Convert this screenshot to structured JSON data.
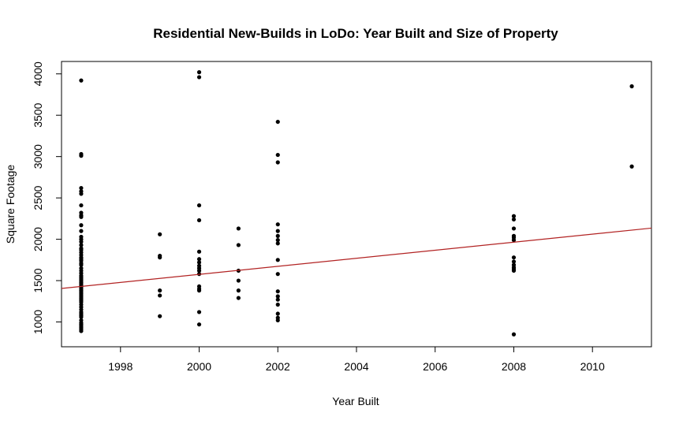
{
  "chart_data": {
    "type": "scatter",
    "title": "Residential New-Builds in LoDo: Year Built and Size of Property",
    "xlabel": "Year Built",
    "ylabel": "Square Footage",
    "xlim": [
      1996.5,
      2011.5
    ],
    "ylim": [
      700,
      4150
    ],
    "x_ticks": [
      "1998",
      "2000",
      "2002",
      "2004",
      "2006",
      "2008",
      "2010"
    ],
    "y_ticks": [
      "1000",
      "1500",
      "2000",
      "2500",
      "3000",
      "3500",
      "4000"
    ],
    "grid": false,
    "point_color": "#000000",
    "line_color": "#b22222",
    "trend_line": {
      "x": [
        1996.5,
        2011.5
      ],
      "y": [
        1405,
        2135
      ]
    },
    "points": [
      [
        1997,
        3920
      ],
      [
        1997,
        3030
      ],
      [
        1997,
        3010
      ],
      [
        1997,
        2620
      ],
      [
        1997,
        2580
      ],
      [
        1997,
        2550
      ],
      [
        1997,
        2410
      ],
      [
        1997,
        2320
      ],
      [
        1997,
        2290
      ],
      [
        1997,
        2270
      ],
      [
        1997,
        2170
      ],
      [
        1997,
        2100
      ],
      [
        1997,
        2030
      ],
      [
        1997,
        2000
      ],
      [
        1997,
        1970
      ],
      [
        1997,
        1930
      ],
      [
        1997,
        1890
      ],
      [
        1997,
        1870
      ],
      [
        1997,
        1840
      ],
      [
        1997,
        1810
      ],
      [
        1997,
        1780
      ],
      [
        1997,
        1760
      ],
      [
        1997,
        1740
      ],
      [
        1997,
        1710
      ],
      [
        1997,
        1690
      ],
      [
        1997,
        1650
      ],
      [
        1997,
        1620
      ],
      [
        1997,
        1590
      ],
      [
        1997,
        1560
      ],
      [
        1997,
        1540
      ],
      [
        1997,
        1520
      ],
      [
        1997,
        1500
      ],
      [
        1997,
        1480
      ],
      [
        1997,
        1460
      ],
      [
        1997,
        1440
      ],
      [
        1997,
        1420
      ],
      [
        1997,
        1400
      ],
      [
        1997,
        1380
      ],
      [
        1997,
        1360
      ],
      [
        1997,
        1340
      ],
      [
        1997,
        1320
      ],
      [
        1997,
        1300
      ],
      [
        1997,
        1280
      ],
      [
        1997,
        1260
      ],
      [
        1997,
        1240
      ],
      [
        1997,
        1210
      ],
      [
        1997,
        1180
      ],
      [
        1997,
        1150
      ],
      [
        1997,
        1120
      ],
      [
        1997,
        1100
      ],
      [
        1997,
        1080
      ],
      [
        1997,
        1060
      ],
      [
        1997,
        1020
      ],
      [
        1997,
        990
      ],
      [
        1997,
        970
      ],
      [
        1997,
        950
      ],
      [
        1997,
        930
      ],
      [
        1997,
        910
      ],
      [
        1997,
        890
      ],
      [
        1999,
        2060
      ],
      [
        1999,
        1800
      ],
      [
        1999,
        1780
      ],
      [
        1999,
        1380
      ],
      [
        1999,
        1320
      ],
      [
        1999,
        1070
      ],
      [
        2000,
        4020
      ],
      [
        2000,
        3960
      ],
      [
        2000,
        2410
      ],
      [
        2000,
        2230
      ],
      [
        2000,
        1850
      ],
      [
        2000,
        1760
      ],
      [
        2000,
        1720
      ],
      [
        2000,
        1680
      ],
      [
        2000,
        1650
      ],
      [
        2000,
        1620
      ],
      [
        2000,
        1580
      ],
      [
        2000,
        1430
      ],
      [
        2000,
        1400
      ],
      [
        2000,
        1380
      ],
      [
        2000,
        1120
      ],
      [
        2000,
        970
      ],
      [
        2001,
        2130
      ],
      [
        2001,
        1930
      ],
      [
        2001,
        1620
      ],
      [
        2001,
        1500
      ],
      [
        2001,
        1380
      ],
      [
        2001,
        1290
      ],
      [
        2002,
        3420
      ],
      [
        2002,
        3020
      ],
      [
        2002,
        2930
      ],
      [
        2002,
        2180
      ],
      [
        2002,
        2100
      ],
      [
        2002,
        2040
      ],
      [
        2002,
        1990
      ],
      [
        2002,
        1950
      ],
      [
        2002,
        1750
      ],
      [
        2002,
        1580
      ],
      [
        2002,
        1370
      ],
      [
        2002,
        1310
      ],
      [
        2002,
        1270
      ],
      [
        2002,
        1210
      ],
      [
        2002,
        1100
      ],
      [
        2002,
        1050
      ],
      [
        2002,
        1020
      ],
      [
        2008,
        2280
      ],
      [
        2008,
        2240
      ],
      [
        2008,
        2130
      ],
      [
        2008,
        2040
      ],
      [
        2008,
        2020
      ],
      [
        2008,
        1990
      ],
      [
        2008,
        1780
      ],
      [
        2008,
        1730
      ],
      [
        2008,
        1690
      ],
      [
        2008,
        1660
      ],
      [
        2008,
        1640
      ],
      [
        2008,
        1620
      ],
      [
        2008,
        850
      ],
      [
        2011,
        3850
      ],
      [
        2011,
        2880
      ]
    ]
  }
}
